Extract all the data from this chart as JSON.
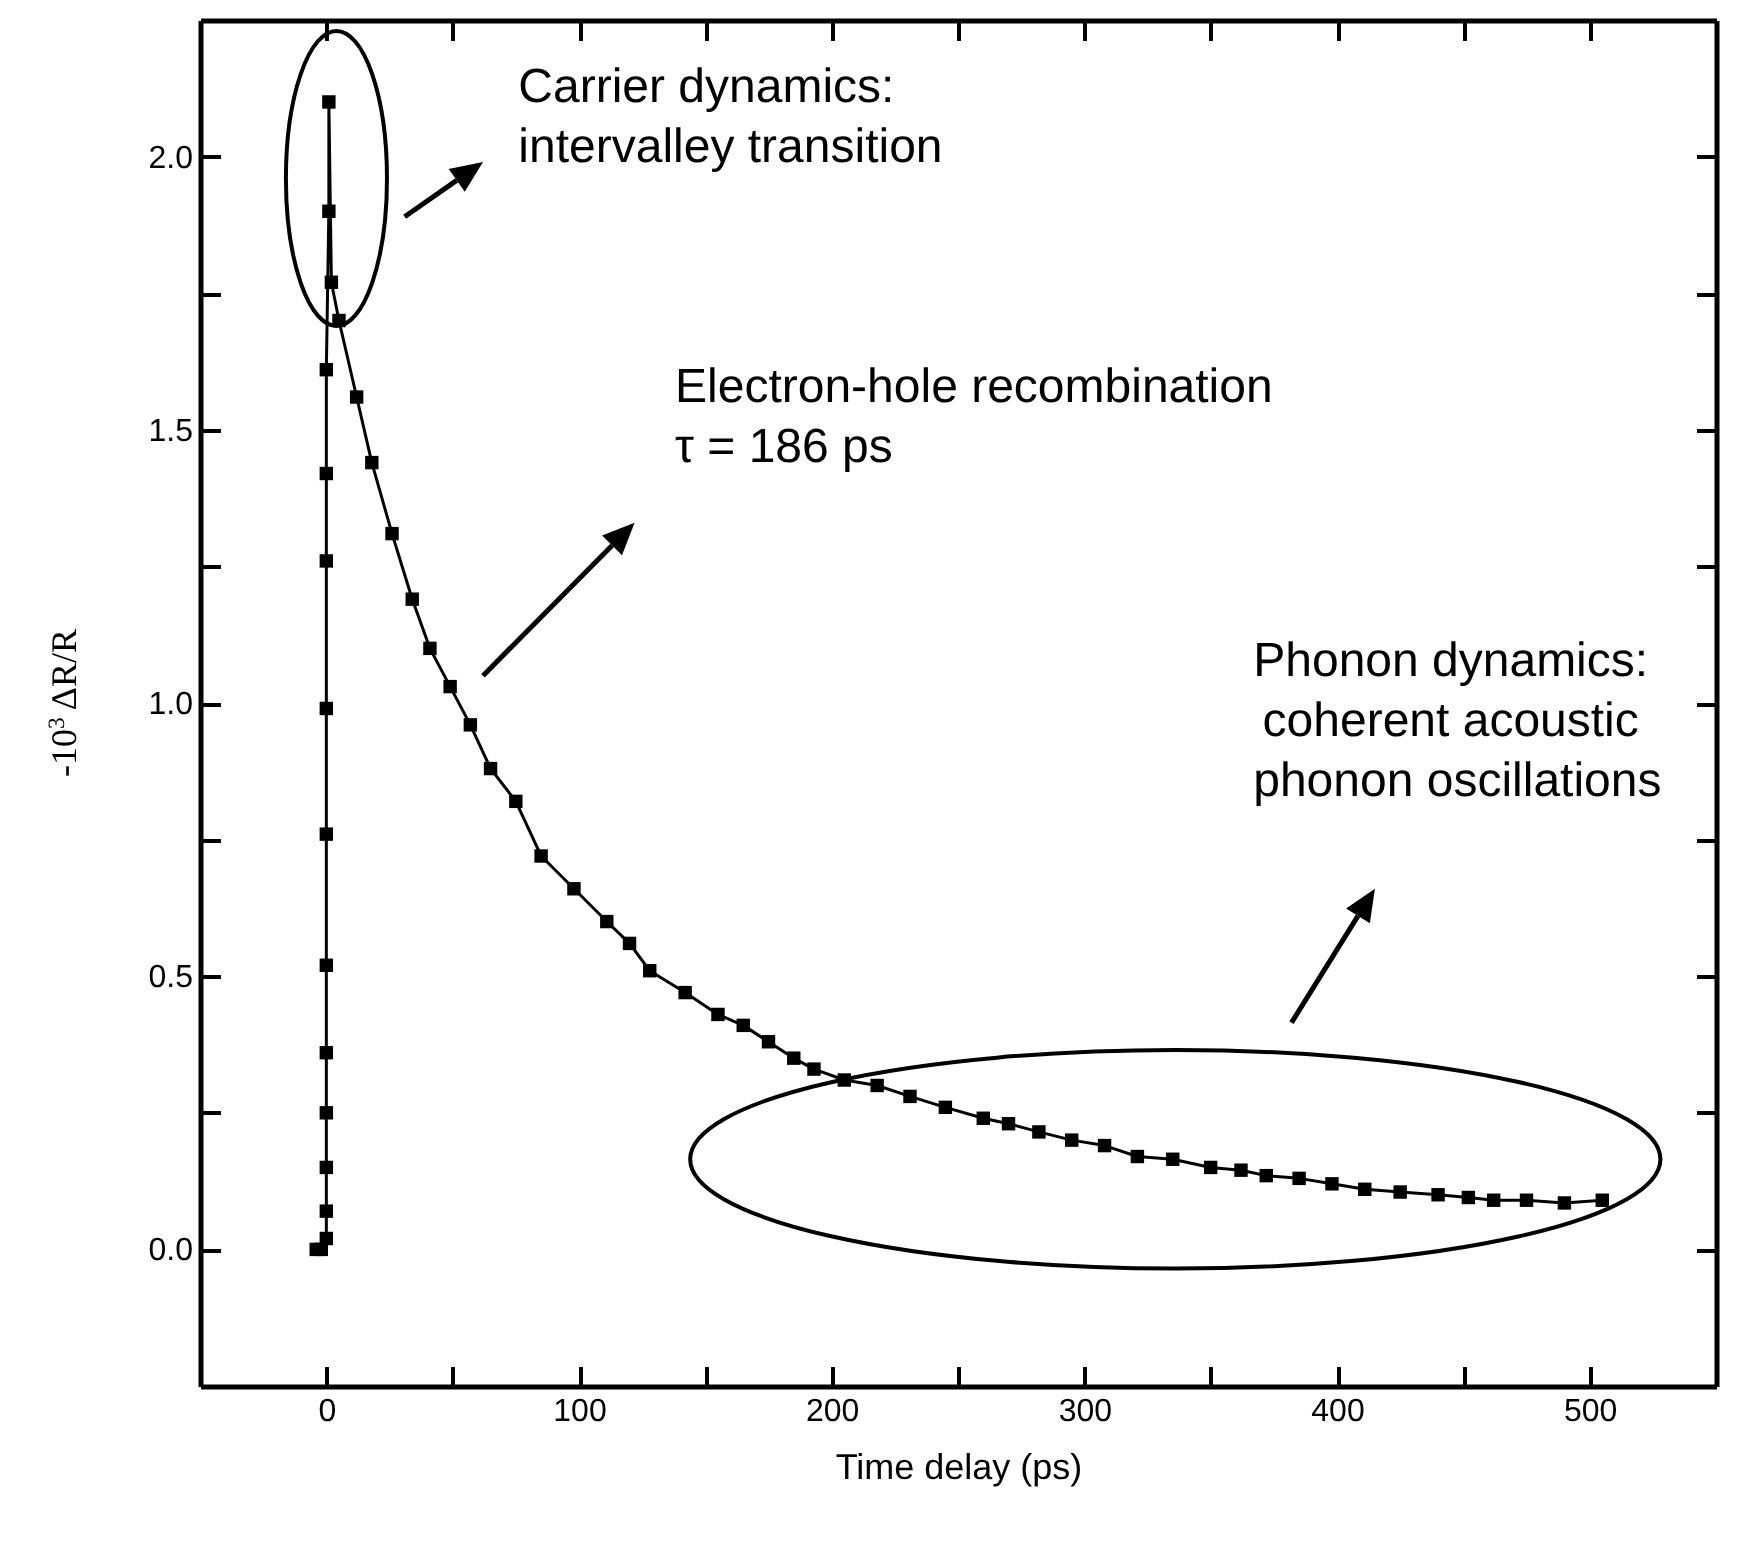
{
  "chart_data": {
    "type": "line",
    "xlabel": "Time delay (ps)",
    "ylabel": "-10$^{3}$ ΔR/R",
    "xlim": [
      -50,
      550
    ],
    "ylim": [
      -0.25,
      2.25
    ],
    "xticks": [
      {
        "value": -50,
        "label": null
      },
      0,
      {
        "value": 50,
        "label": null
      },
      100,
      {
        "value": 150,
        "label": null
      },
      200,
      {
        "value": 250,
        "label": null
      },
      300,
      {
        "value": 350,
        "label": null
      },
      400,
      {
        "value": 450,
        "label": null
      },
      500
    ],
    "yticks": [
      {
        "value": 0,
        "label": "0.0"
      },
      {
        "value": 0.25,
        "label": null
      },
      0.5,
      {
        "value": 0.75,
        "label": null
      },
      {
        "value": 1,
        "label": "1.0"
      },
      {
        "value": 1.25,
        "label": null
      },
      1.5,
      {
        "value": 1.75,
        "label": null
      },
      {
        "value": 2,
        "label": "2.0"
      }
    ],
    "marker": "square",
    "line_style": "solid",
    "grid": false,
    "annotations": [
      "Carrier dynamics:\nintervalley  transition",
      "Electron-hole recombination\nτ = 186 ps",
      "Phonon dynamics:\ncoherent acoustic\n phonon oscillations"
    ],
    "series": [
      {
        "color": "#000000",
        "x": [
          -4,
          -2,
          0,
          0,
          0,
          0,
          0,
          0,
          0,
          0,
          0,
          0,
          0,
          1,
          1,
          2,
          5,
          12,
          18,
          26,
          34,
          41,
          49,
          57,
          65,
          75,
          85,
          98,
          111,
          120,
          128,
          142,
          155,
          165,
          175,
          185,
          193,
          205,
          218,
          231,
          245,
          260,
          270,
          282,
          295,
          308,
          321,
          335,
          350,
          362,
          372,
          385,
          398,
          411,
          425,
          440,
          452,
          462,
          475,
          490,
          505
        ],
        "values": [
          0,
          0,
          0.02,
          0.07,
          0.15,
          0.25,
          0.36,
          0.52,
          0.76,
          0.99,
          1.26,
          1.42,
          1.61,
          1.9,
          2.1,
          1.77,
          1.7,
          1.56,
          1.44,
          1.31,
          1.19,
          1.1,
          1.03,
          0.96,
          0.88,
          0.82,
          0.72,
          0.66,
          0.6,
          0.56,
          0.51,
          0.47,
          0.43,
          0.41,
          0.38,
          0.35,
          0.33,
          0.31,
          0.3,
          0.28,
          0.26,
          0.24,
          0.23,
          0.215,
          0.2,
          0.19,
          0.17,
          0.165,
          0.15,
          0.145,
          0.135,
          0.13,
          0.12,
          0.11,
          0.105,
          0.1,
          0.095,
          0.09,
          0.09,
          0.085,
          0.09
        ]
      }
    ]
  }
}
